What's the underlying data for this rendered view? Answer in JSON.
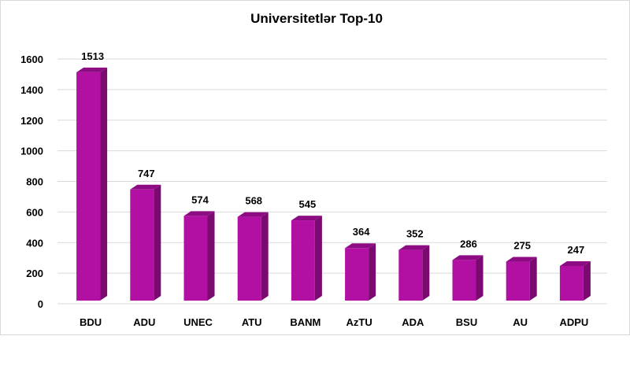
{
  "chart_data": {
    "type": "bar",
    "title": "Universitetlər  Top-10",
    "categories": [
      "BDU",
      "ADU",
      "UNEC",
      "ATU",
      "BANM",
      "AzTU",
      "ADA",
      "BSU",
      "AU",
      "ADPU"
    ],
    "values": [
      1513,
      747,
      574,
      568,
      545,
      364,
      352,
      286,
      275,
      247
    ],
    "xlabel": "",
    "ylabel": "",
    "ylim": [
      0,
      1600
    ],
    "yticks": [
      0,
      200,
      400,
      600,
      800,
      1000,
      1200,
      1400,
      1600
    ],
    "grid": true,
    "legend": "none",
    "colors": {
      "bar_front": "#b20fa3",
      "bar_side": "#7a0a70",
      "bar_top": "#8e0c83",
      "grid": "#d9d9d9"
    }
  }
}
